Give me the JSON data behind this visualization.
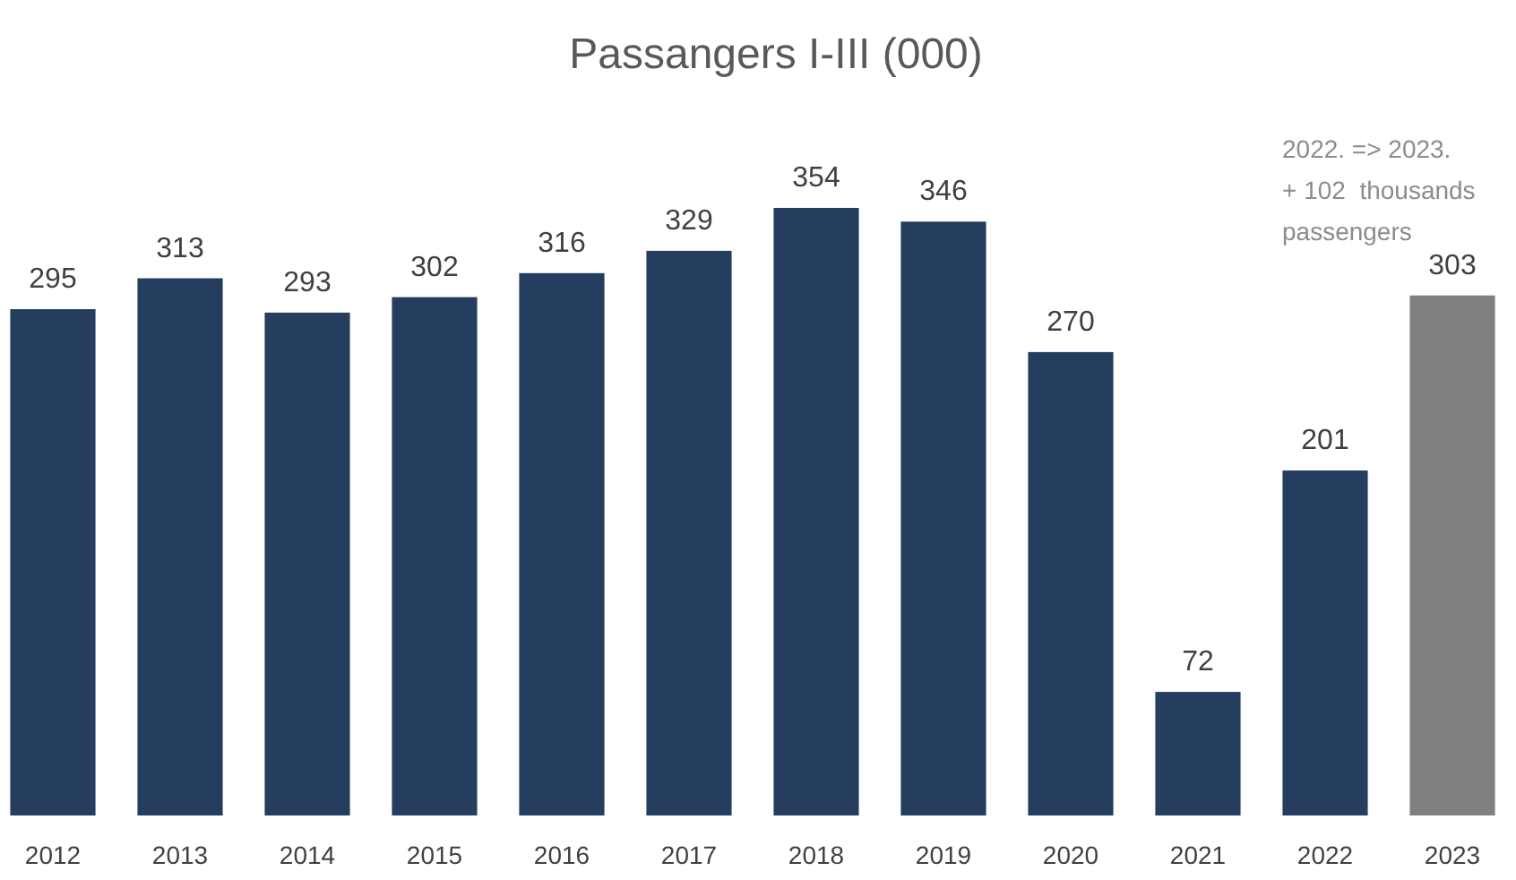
{
  "chart_data": {
    "type": "bar",
    "title": "Passangers I-III (000)",
    "categories": [
      "2012",
      "2013",
      "2014",
      "2015",
      "2016",
      "2017",
      "2018",
      "2019",
      "2020",
      "2021",
      "2022",
      "2023"
    ],
    "values": [
      295,
      313,
      293,
      302,
      316,
      329,
      354,
      346,
      270,
      72,
      201,
      303
    ],
    "colors": [
      "#253d5e",
      "#253d5e",
      "#253d5e",
      "#253d5e",
      "#253d5e",
      "#253d5e",
      "#253d5e",
      "#253d5e",
      "#253d5e",
      "#253d5e",
      "#253d5e",
      "#808080"
    ],
    "data_labels": true,
    "annotations": [
      "2022. => 2023.\n+ 102  thousands\npassengers"
    ]
  }
}
